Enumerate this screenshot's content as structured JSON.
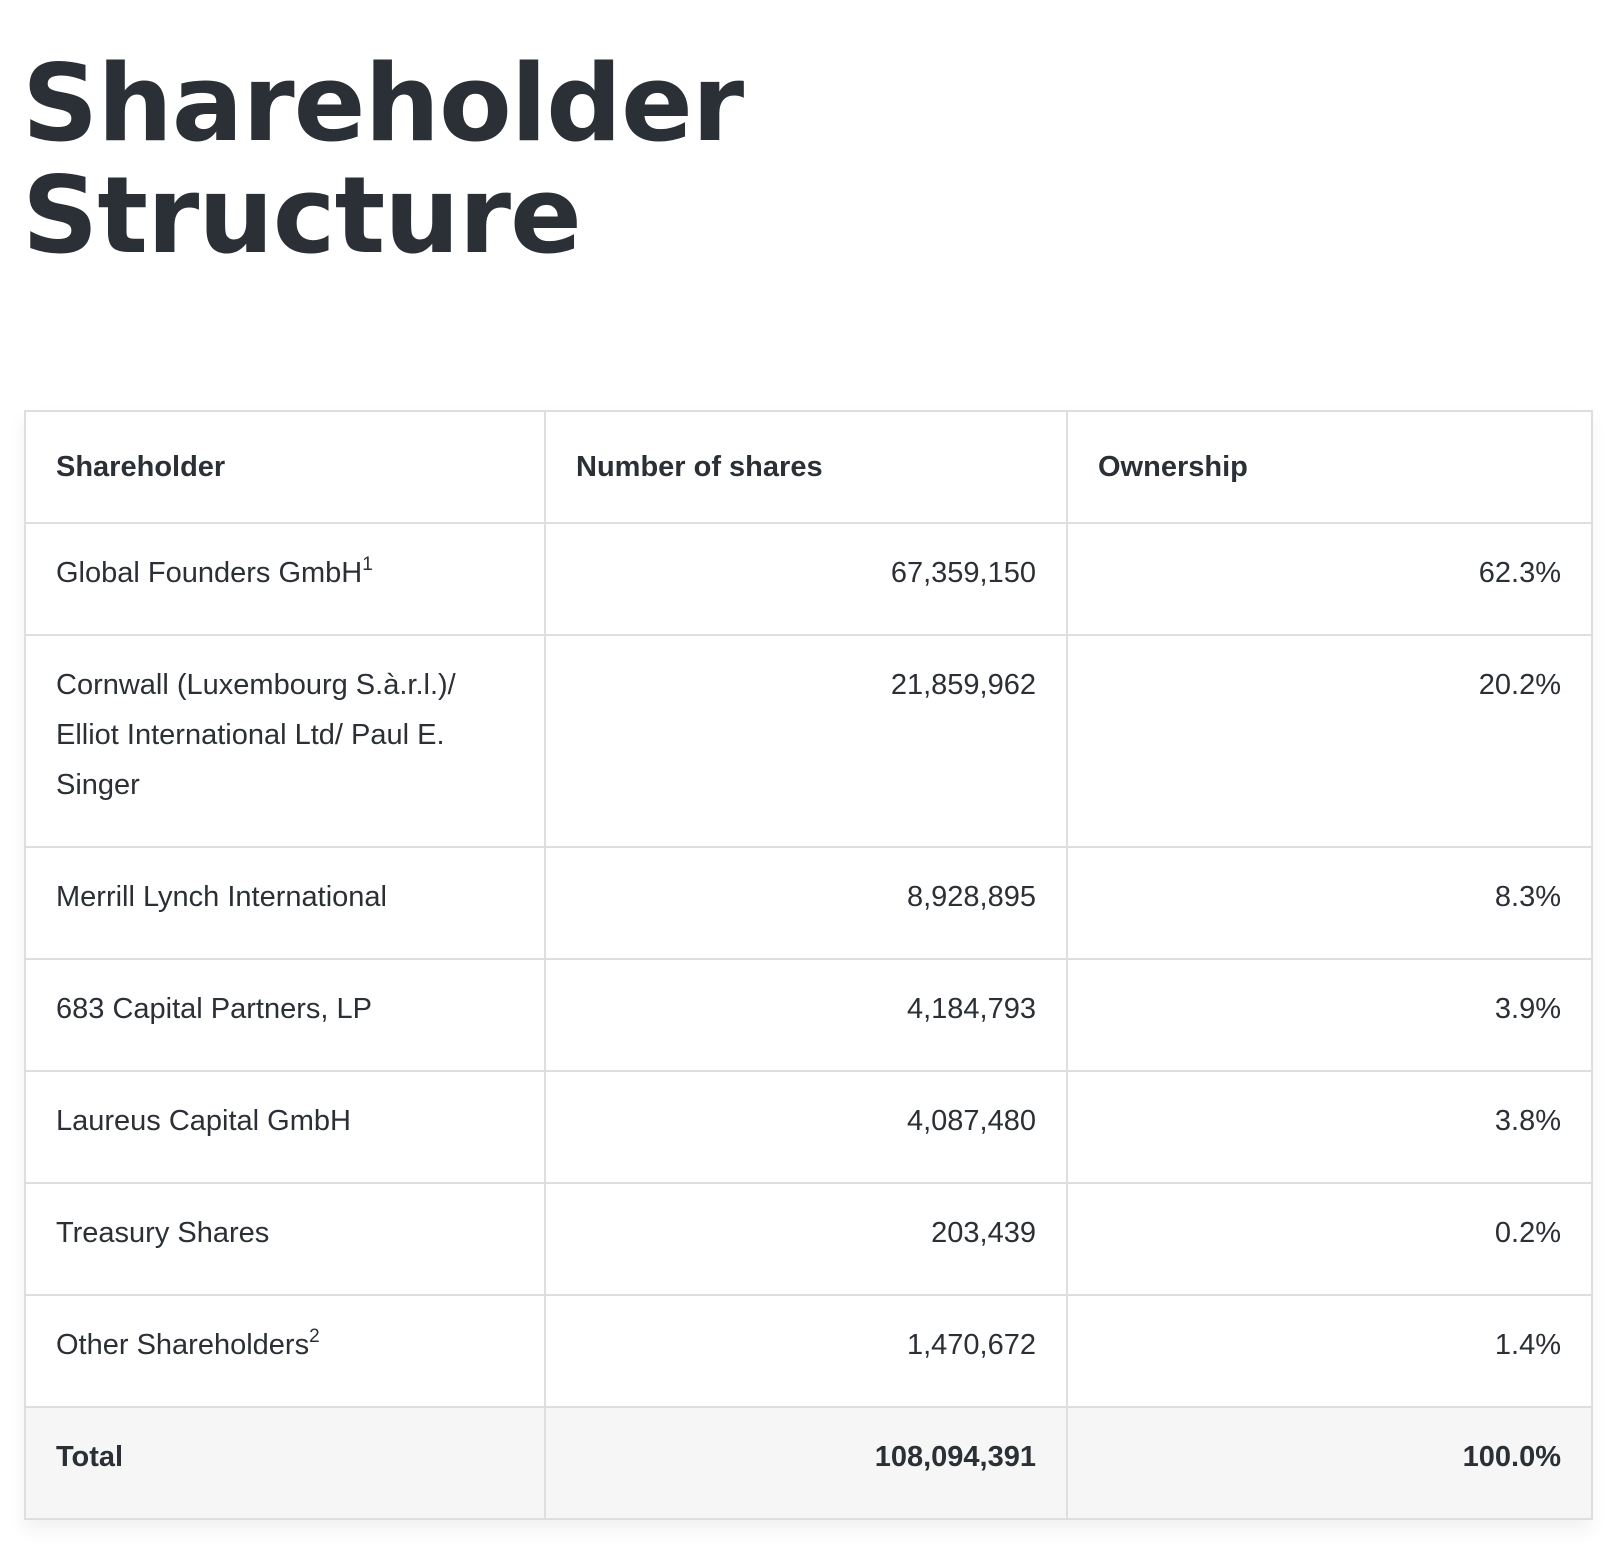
{
  "page": {
    "title_line1": "Shareholder",
    "title_line2": "Structure"
  },
  "table": {
    "headers": {
      "shareholder": "Shareholder",
      "shares": "Number of shares",
      "ownership": "Ownership"
    },
    "rows": [
      {
        "name": "Global Founders GmbH",
        "footnote": "1",
        "shares": "67,359,150",
        "ownership": "62.3%"
      },
      {
        "name": "Cornwall (Luxembourg S.à.r.l.)/ Elliot International Ltd/ Paul E. Singer",
        "footnote": "",
        "shares": "21,859,962",
        "ownership": "20.2%"
      },
      {
        "name": "Merrill Lynch International",
        "footnote": "",
        "shares": "8,928,895",
        "ownership": "8.3%"
      },
      {
        "name": "683 Capital Partners, LP",
        "footnote": "",
        "shares": "4,184,793",
        "ownership": "3.9%"
      },
      {
        "name": "Laureus Capital GmbH",
        "footnote": "",
        "shares": "4,087,480",
        "ownership": "3.8%"
      },
      {
        "name": "Treasury Shares",
        "footnote": "",
        "shares": "203,439",
        "ownership": "0.2%"
      },
      {
        "name": "Other Shareholders",
        "footnote": "2",
        "shares": "1,470,672",
        "ownership": "1.4%"
      }
    ],
    "total": {
      "label": "Total",
      "shares": "108,094,391",
      "ownership": "100.0%"
    }
  },
  "colors": {
    "text": "#2b2f36",
    "border": "#dedede",
    "total_row_bg": "#f6f6f6"
  }
}
